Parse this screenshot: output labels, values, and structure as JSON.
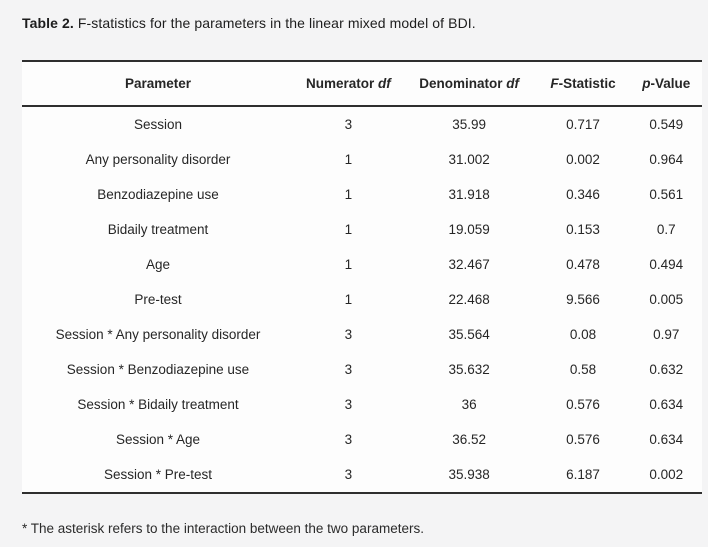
{
  "caption": {
    "label": "Table 2.",
    "text": " F-statistics for the parameters in the linear mixed model of BDI."
  },
  "table": {
    "headers": [
      {
        "pre": "Parameter",
        "italic": "",
        "post": ""
      },
      {
        "pre": "Numerator ",
        "italic": "df",
        "post": ""
      },
      {
        "pre": "Denominator ",
        "italic": "df",
        "post": ""
      },
      {
        "pre": "",
        "italic": "F",
        "post": "-Statistic"
      },
      {
        "pre": "",
        "italic": "p",
        "post": "-Value"
      }
    ],
    "rows": [
      [
        "Session",
        "3",
        "35.99",
        "0.717",
        "0.549"
      ],
      [
        "Any personality disorder",
        "1",
        "31.002",
        "0.002",
        "0.964"
      ],
      [
        "Benzodiazepine use",
        "1",
        "31.918",
        "0.346",
        "0.561"
      ],
      [
        "Bidaily treatment",
        "1",
        "19.059",
        "0.153",
        "0.7"
      ],
      [
        "Age",
        "1",
        "32.467",
        "0.478",
        "0.494"
      ],
      [
        "Pre-test",
        "1",
        "22.468",
        "9.566",
        "0.005"
      ],
      [
        "Session * Any personality disorder",
        "3",
        "35.564",
        "0.08",
        "0.97"
      ],
      [
        "Session * Benzodiazepine use",
        "3",
        "35.632",
        "0.58",
        "0.632"
      ],
      [
        "Session * Bidaily treatment",
        "3",
        "36",
        "0.576",
        "0.634"
      ],
      [
        "Session * Age",
        "3",
        "36.52",
        "0.576",
        "0.634"
      ],
      [
        "Session * Pre-test",
        "3",
        "35.938",
        "6.187",
        "0.002"
      ]
    ]
  },
  "footnote": "* The asterisk refers to the interaction between the two parameters.",
  "colors": {
    "page_background": "#f4f4f5",
    "table_background": "#fdfdfd",
    "rule": "#2e2e2e",
    "text": "#262626"
  }
}
